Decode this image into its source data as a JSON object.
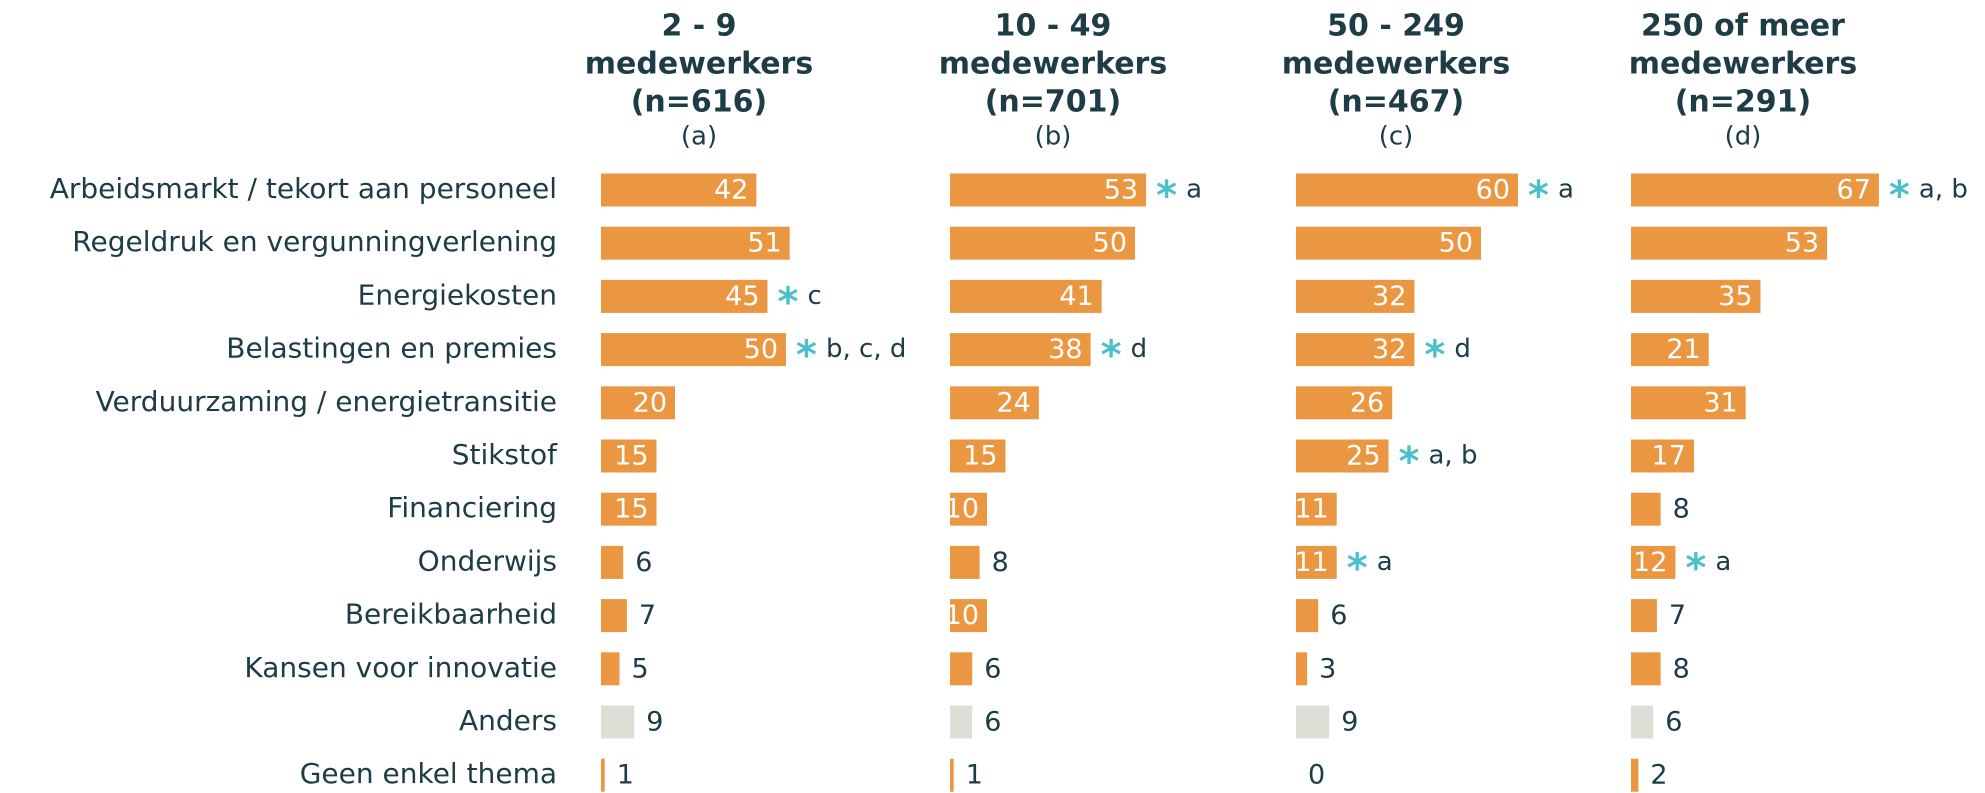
{
  "chart_data": {
    "type": "bar",
    "categories": [
      "Arbeidsmarkt / tekort aan personeel",
      "Regeldruk en vergunningverlening",
      "Energiekosten",
      "Belastingen en premies",
      "Verduurzaming / energietransitie",
      "Stikstof",
      "Financiering",
      "Onderwijs",
      "Bereikbaarheid",
      "Kansen voor innovatie",
      "Anders",
      "Geen enkel thema"
    ],
    "category_colors": [
      "#eb9640",
      "#eb9640",
      "#eb9640",
      "#eb9640",
      "#eb9640",
      "#eb9640",
      "#eb9640",
      "#eb9640",
      "#eb9640",
      "#eb9640",
      "#deded6",
      "#eb9640"
    ],
    "significance_marker": "*",
    "series": [
      {
        "name": [
          "2 - 9",
          "medewerkers",
          "(n=616)"
        ],
        "label": "(a)",
        "values": [
          42,
          51,
          45,
          50,
          20,
          15,
          15,
          6,
          7,
          5,
          9,
          1
        ],
        "significance": [
          null,
          null,
          "c",
          "b, c, d",
          null,
          null,
          null,
          null,
          null,
          null,
          null,
          null
        ]
      },
      {
        "name": [
          "10 - 49",
          "medewerkers",
          "(n=701)"
        ],
        "label": "(b)",
        "values": [
          53,
          50,
          41,
          38,
          24,
          15,
          10,
          8,
          10,
          6,
          6,
          1
        ],
        "significance": [
          "a",
          null,
          null,
          "d",
          null,
          null,
          null,
          null,
          null,
          null,
          null,
          null
        ]
      },
      {
        "name": [
          "50 - 249",
          "medewerkers",
          "(n=467)"
        ],
        "label": "(c)",
        "values": [
          60,
          50,
          32,
          32,
          26,
          25,
          11,
          11,
          6,
          3,
          9,
          0
        ],
        "significance": [
          "a",
          null,
          null,
          "d",
          null,
          "a, b",
          null,
          "a",
          null,
          null,
          null,
          null
        ]
      },
      {
        "name": [
          "250 of meer",
          "medewerkers",
          "(n=291)"
        ],
        "label": "(d)",
        "values": [
          67,
          53,
          35,
          21,
          31,
          17,
          8,
          12,
          7,
          8,
          6,
          2
        ],
        "significance": [
          "a, b",
          null,
          null,
          null,
          null,
          null,
          null,
          "a",
          null,
          null,
          null,
          null
        ]
      }
    ]
  }
}
